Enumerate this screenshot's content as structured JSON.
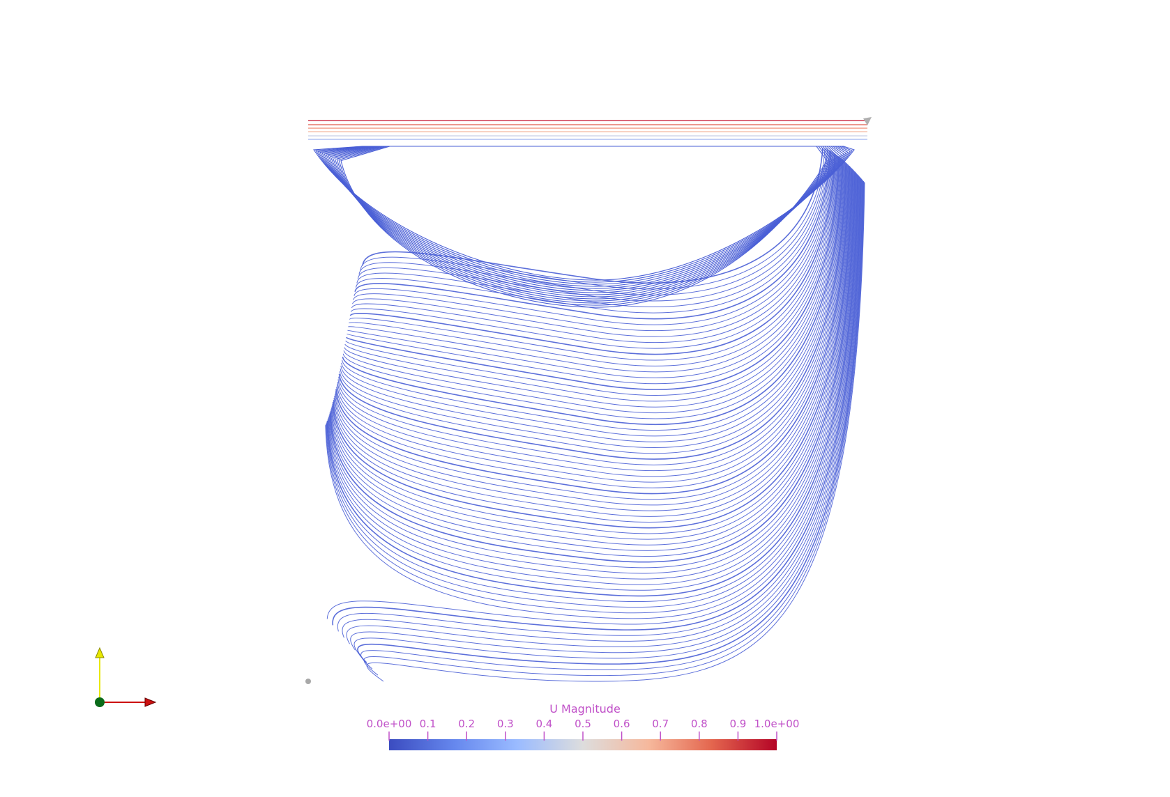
{
  "colorbar": {
    "title": "U Magnitude",
    "tick_labels": [
      "0.0e+00",
      "0.1",
      "0.2",
      "0.3",
      "0.4",
      "0.5",
      "0.6",
      "0.7",
      "0.8",
      "0.9",
      "1.0e+00"
    ],
    "range": [
      0.0,
      1.0
    ],
    "colormap": "cool-to-warm",
    "colors": [
      "#3b4cc0",
      "#7b9ff9",
      "#c0d4f5",
      "#dddddd",
      "#f2cbb7",
      "#ee8468",
      "#b40426"
    ],
    "text_color": "#c050c8"
  },
  "streamlines": {
    "dominant_color": "#4a5fd6",
    "lid_colors": [
      "#c4102c",
      "#e05a4a",
      "#f08a70",
      "#f4b8a0",
      "#c8cfe8",
      "#9fb4f0"
    ]
  },
  "orientation_axes": {
    "x_color": "#cc1111",
    "y_color": "#e8e800",
    "origin_color": "#0a6b1a"
  }
}
